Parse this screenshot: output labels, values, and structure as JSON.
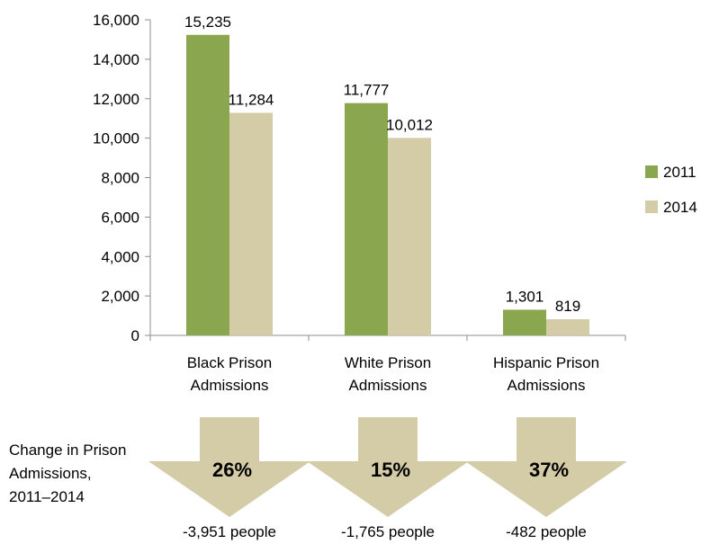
{
  "chart_data": {
    "type": "bar",
    "categories": [
      [
        "Black Prison",
        "Admissions"
      ],
      [
        "White Prison",
        "Admissions"
      ],
      [
        "Hispanic Prison",
        "Admissions"
      ]
    ],
    "series": [
      {
        "name": "2011",
        "values": [
          15235,
          11777,
          1301
        ],
        "labels": [
          "15,235",
          "11,777",
          "1,301"
        ],
        "color": "#8aa64e"
      },
      {
        "name": "2014",
        "values": [
          11284,
          10012,
          819
        ],
        "labels": [
          "11,284",
          "10,012",
          "819"
        ],
        "color": "#d4cba7"
      }
    ],
    "yticks": [
      "0",
      "2,000",
      "4,000",
      "6,000",
      "8,000",
      "10,000",
      "12,000",
      "14,000",
      "16,000"
    ],
    "ylim": [
      0,
      16000
    ],
    "legend_position": "right"
  },
  "change": {
    "label_lines": [
      "Change in Prison",
      "Admissions,",
      "2011–2014"
    ],
    "arrow_color": "#d4cba7",
    "items": [
      {
        "percent": "26%",
        "people": "-3,951 people"
      },
      {
        "percent": "15%",
        "people": "-1,765 people"
      },
      {
        "percent": "37%",
        "people": "-482 people"
      }
    ]
  }
}
